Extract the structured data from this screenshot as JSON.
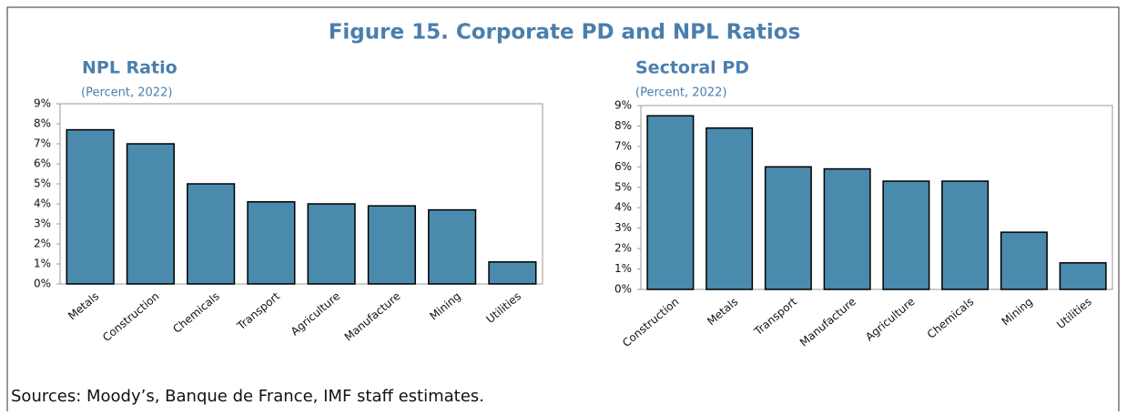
{
  "title": "Figure 15. Corporate PD and NPL Ratios",
  "source": "Sources: Moody’s, Banque de France, IMF staff estimates.",
  "chart_data": [
    {
      "type": "bar",
      "title": "NPL Ratio",
      "subtitle": "(Percent, 2022)",
      "categories": [
        "Metals",
        "Construction",
        "Chemicals",
        "Transport",
        "Agriculture",
        "Manufacture",
        "Mining",
        "Utilities"
      ],
      "values": [
        7.7,
        7.0,
        5.0,
        4.1,
        4.0,
        3.9,
        3.7,
        1.1
      ],
      "color": "#4a8aad",
      "ylim": [
        0,
        9
      ],
      "yticks": [
        {
          "value": 0,
          "label": "0%"
        },
        {
          "value": 1,
          "label": "1%"
        },
        {
          "value": 2,
          "label": "2%"
        },
        {
          "value": 3,
          "label": "3%"
        },
        {
          "value": 4,
          "label": "4%"
        },
        {
          "value": 5,
          "label": "5%"
        },
        {
          "value": 6,
          "label": "6%"
        },
        {
          "value": 7,
          "label": "7%"
        },
        {
          "value": 8,
          "label": "8%"
        },
        {
          "value": 9,
          "label": "9%"
        }
      ],
      "grid": false
    },
    {
      "type": "bar",
      "title": "Sectoral PD",
      "subtitle": "(Percent, 2022)",
      "categories": [
        "Construction",
        "Metals",
        "Transport",
        "Manufacture",
        "Agriculture",
        "Chemicals",
        "Mining",
        "Utilities"
      ],
      "values": [
        8.5,
        7.9,
        6.0,
        5.9,
        5.3,
        5.3,
        2.8,
        1.3
      ],
      "color": "#4a8aad",
      "ylim": [
        0,
        9
      ],
      "yticks": [
        {
          "value": 0,
          "label": "0%"
        },
        {
          "value": 1,
          "label": "1%"
        },
        {
          "value": 2,
          "label": "2%"
        },
        {
          "value": 3,
          "label": "3%"
        },
        {
          "value": 4,
          "label": "4%"
        },
        {
          "value": 5,
          "label": "5%"
        },
        {
          "value": 6,
          "label": "6%"
        },
        {
          "value": 7,
          "label": "7%"
        },
        {
          "value": 8,
          "label": "8%"
        },
        {
          "value": 9,
          "label": "9%"
        }
      ],
      "grid": false
    }
  ]
}
